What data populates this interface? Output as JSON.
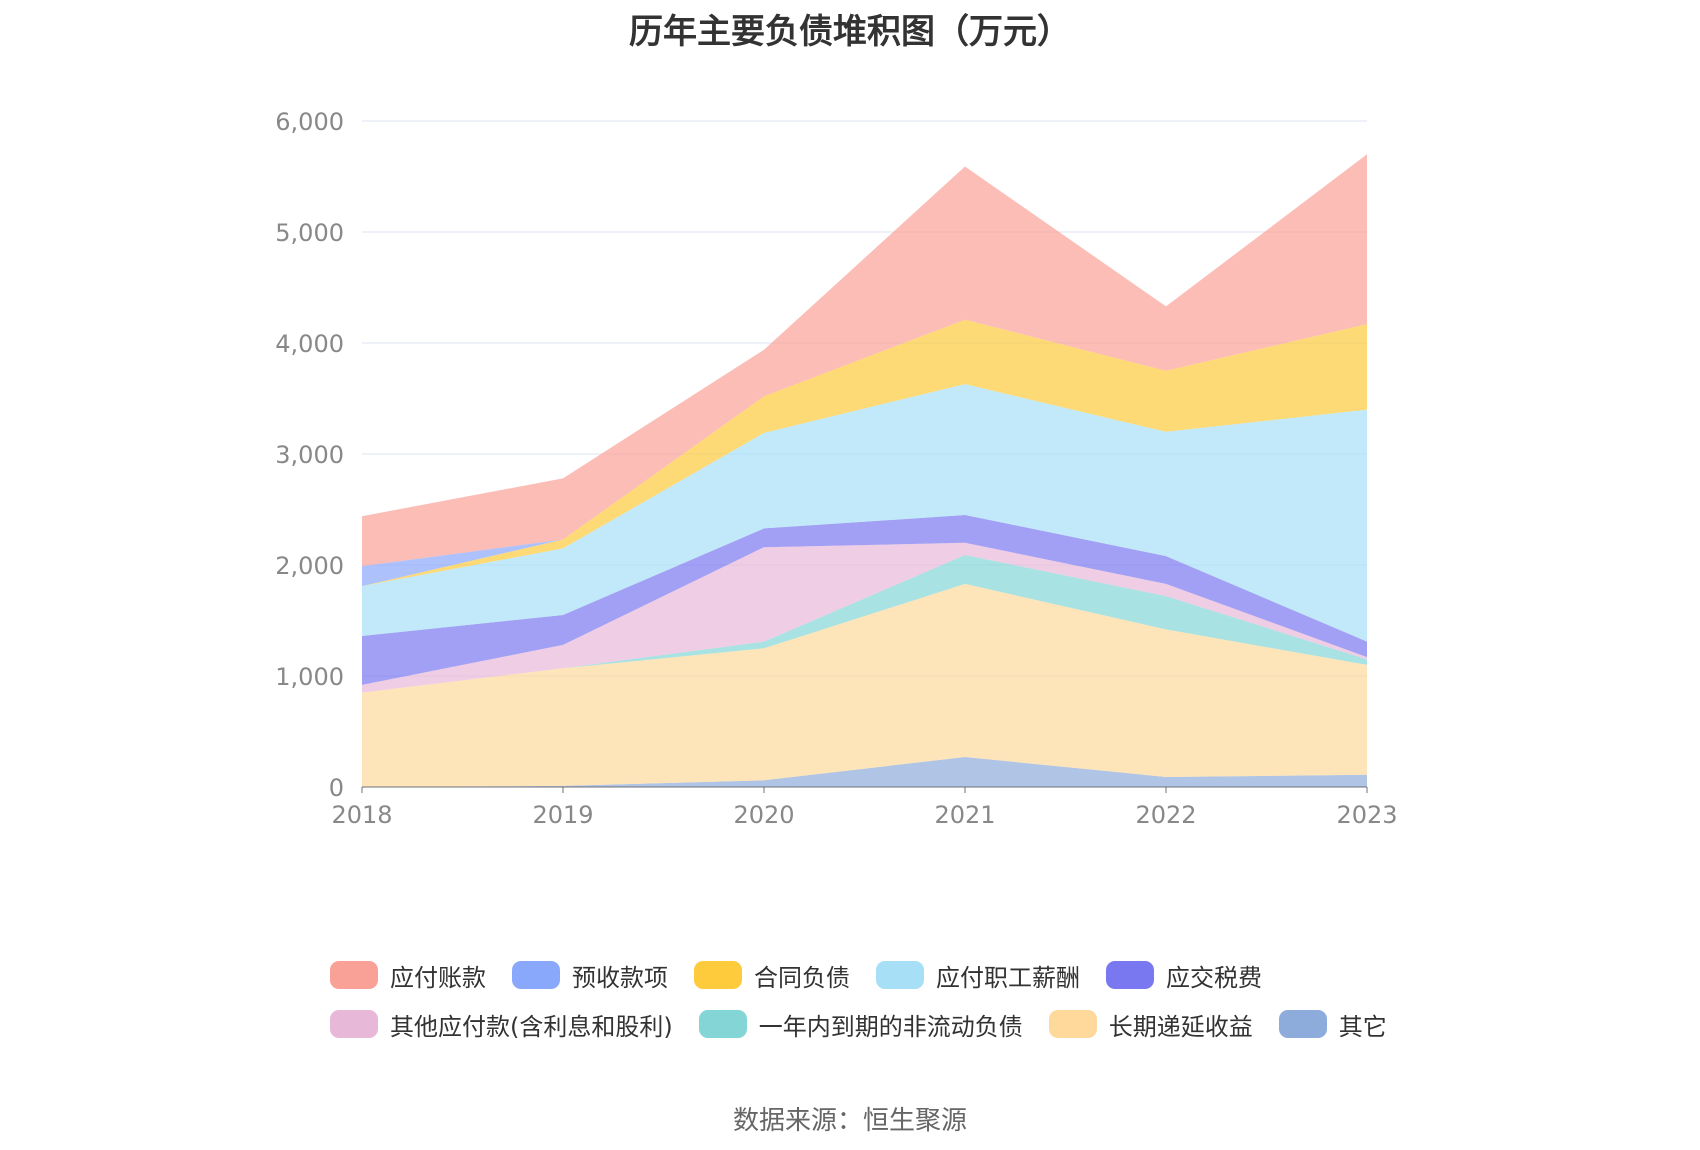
{
  "chart_data": {
    "type": "area",
    "title": "历年主要负债堆积图（万元）",
    "source": "数据来源：恒生聚源",
    "x": [
      "2018",
      "2019",
      "2020",
      "2021",
      "2022",
      "2023"
    ],
    "ylim": [
      0,
      6000
    ],
    "yticks": [
      0,
      1000,
      2000,
      3000,
      4000,
      5000,
      6000
    ],
    "ytick_labels": [
      "0",
      "1,000",
      "2,000",
      "3,000",
      "4,000",
      "5,000",
      "6,000"
    ],
    "grid": true,
    "stacked": true,
    "legend_position": "bottom",
    "series": [
      {
        "name": "应付账款",
        "color": "#f9a197",
        "values": [
          450,
          550,
          420,
          1380,
          580,
          1530
        ]
      },
      {
        "name": "预收款项",
        "color": "#8aa8fb",
        "values": [
          180,
          0,
          0,
          0,
          0,
          0
        ]
      },
      {
        "name": "合同负债",
        "color": "#fecb3d",
        "values": [
          0,
          80,
          330,
          580,
          550,
          770
        ]
      },
      {
        "name": "应付职工薪酬",
        "color": "#a7dff7",
        "values": [
          450,
          600,
          860,
          1180,
          1120,
          2090
        ]
      },
      {
        "name": "应交税费",
        "color": "#7a78f0",
        "values": [
          440,
          270,
          170,
          250,
          250,
          140
        ]
      },
      {
        "name": "其他应付款(含利息和股利)",
        "color": "#e8b8d9",
        "values": [
          70,
          210,
          850,
          110,
          110,
          20
        ]
      },
      {
        "name": "一年内到期的非流动负债",
        "color": "#84d6d6",
        "values": [
          0,
          0,
          60,
          260,
          300,
          50
        ]
      },
      {
        "name": "长期递延收益",
        "color": "#fed99b",
        "values": [
          850,
          1060,
          1190,
          1560,
          1330,
          990
        ]
      },
      {
        "name": "其它",
        "color": "#8eacdb",
        "values": [
          0,
          10,
          60,
          270,
          90,
          110
        ]
      }
    ]
  }
}
